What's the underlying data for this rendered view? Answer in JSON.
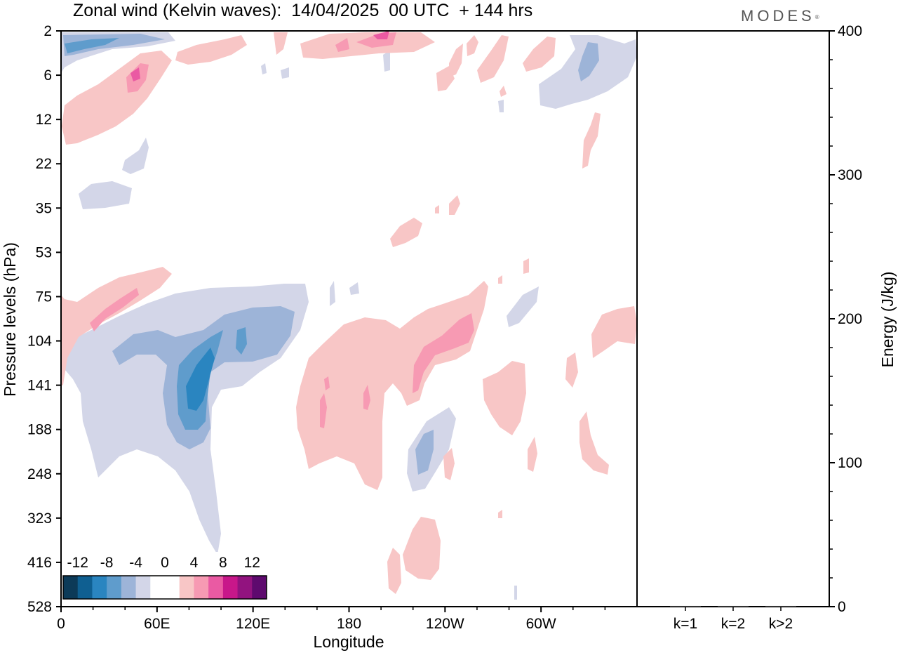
{
  "chart_data": {
    "type": "heatmap",
    "title": "Zonal wind (Kelvin waves):  14/04/2025  00 UTC  + 144 hrs",
    "brand": "MODES",
    "xlabel": "Longitude",
    "ylabel": "Pressure levels (hPa)",
    "x_ticks": [
      "0",
      "60E",
      "120E",
      "180",
      "120W",
      "60W"
    ],
    "y_ticks": [
      "2",
      "6",
      "12",
      "22",
      "35",
      "53",
      "75",
      "104",
      "141",
      "188",
      "248",
      "323",
      "416",
      "528"
    ],
    "colorbar": {
      "labels": [
        "-12",
        "-8",
        "-4",
        "0",
        "4",
        "8",
        "12"
      ],
      "colors": [
        "#0c3a58",
        "#0f5f91",
        "#2a85c0",
        "#5f9ccc",
        "#9db4d8",
        "#d3d6e8",
        "#ffffff",
        "#ffffff",
        "#f8c6c6",
        "#f79ab3",
        "#ea5aa3",
        "#c8178a",
        "#92137f",
        "#5e0a6e"
      ]
    },
    "energy_panel": {
      "ylabel": "Energy (J/kg)",
      "ylim": [
        0,
        400
      ],
      "y_ticks": [
        "0",
        "100",
        "200",
        "300",
        "400"
      ],
      "categories": [
        "k=1",
        "k=2",
        "k>2"
      ],
      "values": [
        0.5,
        0.5,
        0.5
      ]
    }
  }
}
